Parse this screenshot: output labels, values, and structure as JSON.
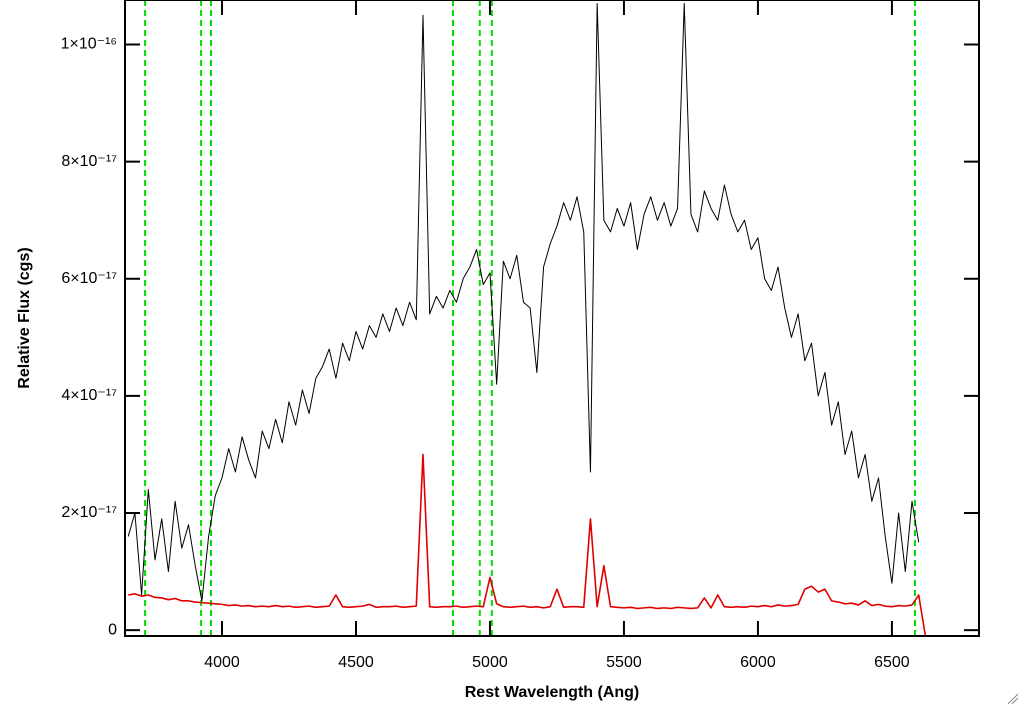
{
  "chart_data": {
    "type": "line",
    "xlabel": "Rest Wavelength (Ang)",
    "ylabel": "Relative Flux (cgs)",
    "xlim": [
      3638,
      6825
    ],
    "ylim": [
      -1e-18,
      1.076e-16
    ],
    "xticks": [
      4000,
      4500,
      5000,
      5500,
      6000,
      6500
    ],
    "yticks": [
      0,
      {
        "value": 2e-17,
        "label": "2×10⁻¹⁷"
      },
      {
        "value": 4e-17,
        "label": "4×10⁻¹⁷"
      },
      {
        "value": 6e-17,
        "label": "6×10⁻¹⁷"
      },
      {
        "value": 8e-17,
        "label": "8×10⁻¹⁷"
      },
      {
        "value": 1e-16,
        "label": "1×10⁻¹⁶"
      }
    ],
    "vlines": [
      3713,
      3922,
      3959,
      4862,
      4962,
      5007,
      6586
    ],
    "vline_color": "#00dd00",
    "x": [
      3650,
      3675,
      3700,
      3725,
      3750,
      3775,
      3800,
      3825,
      3850,
      3875,
      3900,
      3925,
      3950,
      3975,
      4000,
      4025,
      4050,
      4075,
      4100,
      4125,
      4150,
      4175,
      4200,
      4225,
      4250,
      4275,
      4300,
      4325,
      4350,
      4375,
      4400,
      4425,
      4450,
      4475,
      4500,
      4525,
      4550,
      4575,
      4600,
      4625,
      4650,
      4675,
      4700,
      4725,
      4750,
      4775,
      4800,
      4825,
      4850,
      4875,
      4900,
      4925,
      4950,
      4975,
      5000,
      5025,
      5050,
      5075,
      5100,
      5125,
      5150,
      5175,
      5200,
      5225,
      5250,
      5275,
      5300,
      5325,
      5350,
      5375,
      5400,
      5425,
      5450,
      5475,
      5500,
      5525,
      5550,
      5575,
      5600,
      5625,
      5650,
      5675,
      5700,
      5725,
      5750,
      5775,
      5800,
      5825,
      5850,
      5875,
      5900,
      5925,
      5950,
      5975,
      6000,
      6025,
      6050,
      6075,
      6100,
      6125,
      6150,
      6175,
      6200,
      6225,
      6250,
      6275,
      6300,
      6325,
      6350,
      6375,
      6400,
      6425,
      6450,
      6475,
      6500,
      6525,
      6550,
      6575,
      6600,
      6625,
      6650,
      6675,
      6700,
      6725,
      6750,
      6775,
      6800,
      6825
    ],
    "series": [
      {
        "color": "#000000",
        "values": [
          1.6e-17,
          2e-17,
          6e-18,
          2.4e-17,
          1.2e-17,
          1.9e-17,
          1e-17,
          2.2e-17,
          1.4e-17,
          1.8e-17,
          1.1e-17,
          5e-18,
          1.6e-17,
          2.3e-17,
          2.6e-17,
          3.1e-17,
          2.7e-17,
          3.3e-17,
          2.9e-17,
          2.6e-17,
          3.4e-17,
          3.1e-17,
          3.6e-17,
          3.2e-17,
          3.9e-17,
          3.5e-17,
          4.1e-17,
          3.7e-17,
          4.3e-17,
          4.5e-17,
          4.8e-17,
          4.3e-17,
          4.9e-17,
          4.6e-17,
          5.1e-17,
          4.8e-17,
          5.2e-17,
          5e-17,
          5.4e-17,
          5.1e-17,
          5.5e-17,
          5.2e-17,
          5.6e-17,
          5.3e-17,
          1.05e-16,
          5.4e-17,
          5.7e-17,
          5.5e-17,
          5.8e-17,
          5.6e-17,
          6e-17,
          6.2e-17,
          6.5e-17,
          5.9e-17,
          6.1e-17,
          4.2e-17,
          6.3e-17,
          6e-17,
          6.4e-17,
          5.6e-17,
          5.5e-17,
          4.4e-17,
          6.2e-17,
          6.6e-17,
          6.9e-17,
          7.3e-17,
          7e-17,
          7.4e-17,
          6.8e-17,
          2.7e-17,
          1.07e-16,
          7e-17,
          6.8e-17,
          7.2e-17,
          6.9e-17,
          7.3e-17,
          6.5e-17,
          7.1e-17,
          7.4e-17,
          7e-17,
          7.3e-17,
          6.9e-17,
          7.2e-17,
          1.07e-16,
          7.1e-17,
          6.8e-17,
          7.5e-17,
          7.2e-17,
          7e-17,
          7.6e-17,
          7.1e-17,
          6.8e-17,
          7e-17,
          6.5e-17,
          6.7e-17,
          6e-17,
          5.8e-17,
          6.2e-17,
          5.5e-17,
          5e-17,
          5.4e-17,
          4.6e-17,
          4.9e-17,
          4e-17,
          4.4e-17,
          3.5e-17,
          3.9e-17,
          3e-17,
          3.4e-17,
          2.6e-17,
          3e-17,
          2.2e-17,
          2.6e-17,
          1.6e-17,
          8e-18,
          2e-17,
          1e-17,
          2.2e-17,
          1.5e-17,
          null,
          null,
          null,
          null,
          null,
          null,
          null,
          null,
          null
        ]
      },
      {
        "color": "#e00000",
        "values": [
          6e-18,
          6.2e-18,
          5.8e-18,
          6e-18,
          5.6e-18,
          5.5e-18,
          5.2e-18,
          5.4e-18,
          5e-18,
          5e-18,
          4.8e-18,
          4.7e-18,
          4.6e-18,
          4.5e-18,
          4.4e-18,
          4.2e-18,
          4.3e-18,
          4.1e-18,
          4.2e-18,
          4e-18,
          4.1e-18,
          4e-18,
          4.2e-18,
          4e-18,
          4.1e-18,
          3.9e-18,
          4e-18,
          4.1e-18,
          3.9e-18,
          4e-18,
          4.1e-18,
          6e-18,
          4e-18,
          3.9e-18,
          4e-18,
          4.1e-18,
          4.4e-18,
          3.9e-18,
          4e-18,
          4e-18,
          4.1e-18,
          3.9e-18,
          4e-18,
          4.1e-18,
          3e-17,
          4e-18,
          3.9e-18,
          4e-18,
          4e-18,
          4.1e-18,
          3.9e-18,
          4e-18,
          4.1e-18,
          4e-18,
          9e-18,
          4.5e-18,
          4e-18,
          3.9e-18,
          4e-18,
          4.1e-18,
          3.9e-18,
          4e-18,
          3.8e-18,
          4e-18,
          7e-18,
          3.9e-18,
          4e-18,
          4e-18,
          3.9e-18,
          1.9e-17,
          4e-18,
          1.1e-17,
          4e-18,
          3.9e-18,
          3.8e-18,
          3.9e-18,
          3.7e-18,
          3.8e-18,
          3.9e-18,
          3.7e-18,
          3.8e-18,
          3.7e-18,
          3.9e-18,
          3.8e-18,
          3.7e-18,
          3.8e-18,
          5.5e-18,
          3.8e-18,
          6e-18,
          4e-18,
          3.9e-18,
          4e-18,
          3.9e-18,
          4.1e-18,
          4e-18,
          4.2e-18,
          4e-18,
          4.3e-18,
          4.1e-18,
          4.2e-18,
          4.4e-18,
          7e-18,
          7.5e-18,
          6.5e-18,
          7e-18,
          5e-18,
          4.8e-18,
          4.5e-18,
          4.6e-18,
          4.3e-18,
          5e-18,
          4.2e-18,
          4.4e-18,
          4.1e-18,
          4e-18,
          4.2e-18,
          4.1e-18,
          4.3e-18,
          6e-18,
          -1e-18,
          -1e-18,
          -1e-18,
          -1e-18,
          -1e-18,
          -1e-18,
          -1e-18,
          -1e-18,
          -1e-18
        ]
      }
    ]
  }
}
